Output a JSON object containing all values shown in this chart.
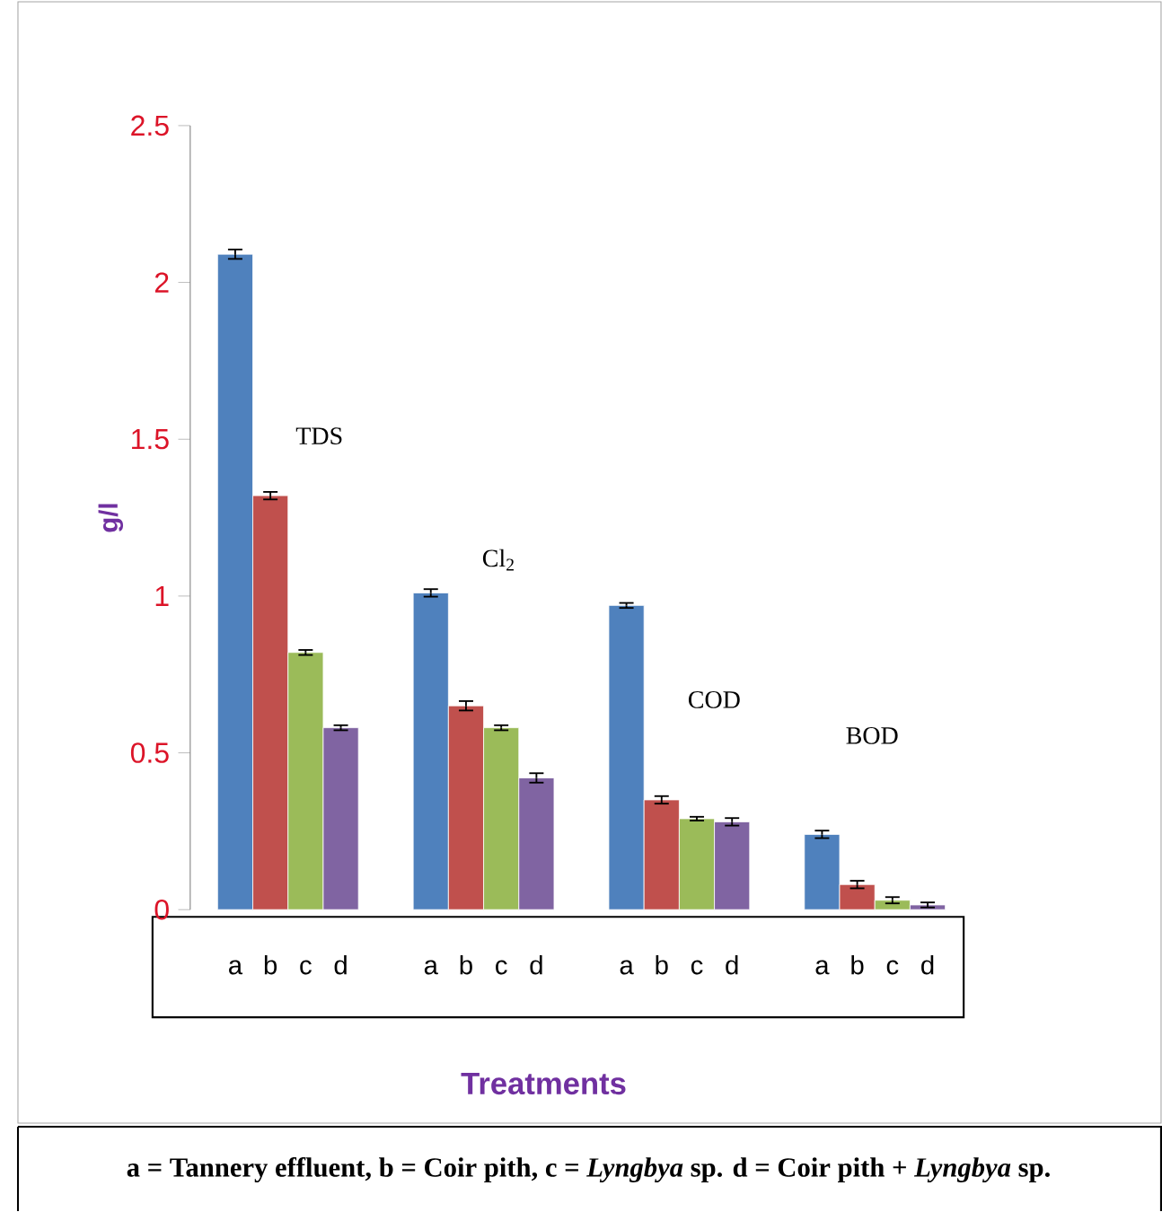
{
  "chart_data": {
    "type": "bar",
    "ylabel": "g/l",
    "xlabel": "Treatments",
    "categories": [
      null,
      null,
      null,
      null
    ],
    "series": [
      {
        "name": "a",
        "color": "#4f81bd",
        "values": [
          2.09,
          1.01,
          0.97,
          0.24
        ],
        "errors": [
          0.015,
          0.012,
          0.008,
          0.012
        ]
      },
      {
        "name": "b",
        "color": "#c0504d",
        "values": [
          1.32,
          0.65,
          0.35,
          0.08
        ],
        "errors": [
          0.012,
          0.015,
          0.012,
          0.012
        ]
      },
      {
        "name": "c",
        "color": "#9bbb59",
        "values": [
          0.82,
          0.58,
          0.29,
          0.03
        ],
        "errors": [
          0.008,
          0.008,
          0.006,
          0.01
        ]
      },
      {
        "name": "d",
        "color": "#8064a2",
        "values": [
          0.58,
          0.42,
          0.28,
          0.015
        ],
        "errors": [
          0.008,
          0.015,
          0.012,
          0.008
        ]
      }
    ],
    "ylim": [
      0,
      2.5
    ],
    "yticks": [
      0,
      0.5,
      1,
      1.5,
      2,
      2.5
    ],
    "annotations": [
      "TDS",
      "Cl$_{2}$",
      "COD",
      "BOD",
      "a = Tannery effluent, b = Coir pith, c = *Lyngbya* sp.  d = Coir pith + *Lyngbya* sp."
    ]
  }
}
